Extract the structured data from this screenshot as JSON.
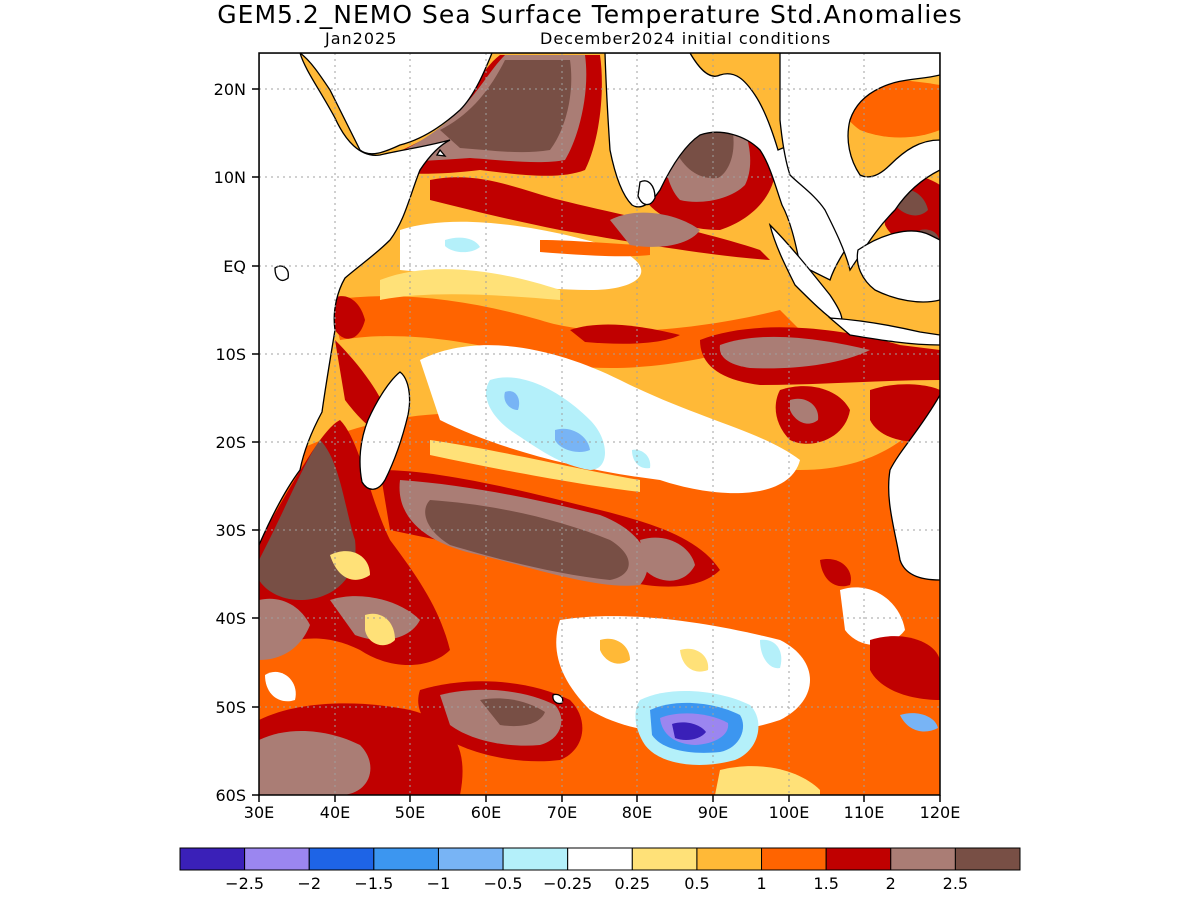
{
  "title": "GEM5.2_NEMO Sea Surface Temperature Std.Anomalies",
  "subtitle_left": "Jan2025",
  "subtitle_right": "December2024 initial conditions",
  "map": {
    "region": "Indian Ocean",
    "lon_range": [
      30,
      120
    ],
    "lat_range": [
      -60,
      24
    ],
    "y_ticks": [
      "20N",
      "10N",
      "EQ",
      "10S",
      "20S",
      "30S",
      "40S",
      "50S",
      "60S"
    ],
    "x_ticks": [
      "30E",
      "40E",
      "50E",
      "60E",
      "70E",
      "80E",
      "90E",
      "100E",
      "110E",
      "120E"
    ],
    "grid": "dotted"
  },
  "colorbar": {
    "colors": [
      "#3a20b8",
      "#9b86f0",
      "#1e64e6",
      "#3c96f0",
      "#78b4f5",
      "#b4f0fa",
      "#ffffff",
      "#ffe178",
      "#ffb937",
      "#ff6400",
      "#c00000",
      "#aa7d75",
      "#784f45"
    ],
    "labels": [
      "−2.5",
      "−2",
      "−1.5",
      "−1",
      "−0.5",
      "−0.25",
      "0.25",
      "0.5",
      "1",
      "1.5",
      "2",
      "2.5"
    ]
  }
}
